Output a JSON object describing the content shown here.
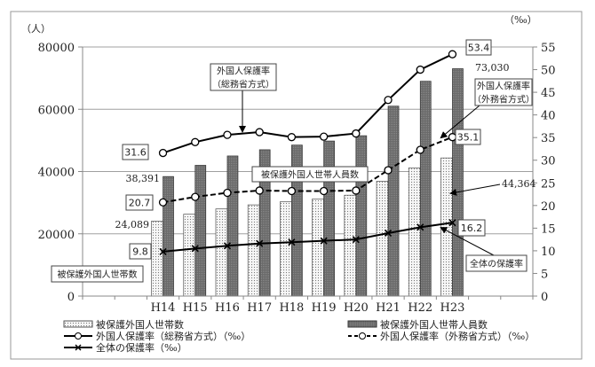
{
  "chart_data": {
    "type": "bar",
    "categories": [
      "H14",
      "H15",
      "H16",
      "H17",
      "H18",
      "H19",
      "H20",
      "H21",
      "H22",
      "H23"
    ],
    "left_axis": {
      "unit": "（人）",
      "ylim": [
        0,
        80000
      ],
      "ticks": [
        "0",
        "20000",
        "40000",
        "60000",
        "80000"
      ]
    },
    "right_axis": {
      "unit": "（‰）",
      "ylim": [
        0,
        55
      ],
      "ticks": [
        "0",
        "5",
        "10",
        "15",
        "20",
        "25",
        "30",
        "35",
        "40",
        "45",
        "50",
        "55"
      ]
    },
    "series": [
      {
        "name": "被保護外国人世帯数",
        "type": "bar",
        "axis": "left",
        "values": [
          24089,
          26300,
          28000,
          29300,
          30300,
          31200,
          32400,
          36900,
          41200,
          44364
        ]
      },
      {
        "name": "被保護外国人世帯人員数",
        "type": "bar",
        "axis": "left",
        "values": [
          38391,
          42000,
          45000,
          47000,
          48500,
          49800,
          51500,
          61000,
          69000,
          73030
        ]
      },
      {
        "name": "外国人保護率（総務省方式）（‰）",
        "type": "line",
        "axis": "right",
        "values": [
          31.6,
          34.0,
          35.6,
          36.2,
          35.1,
          35.2,
          35.9,
          43.3,
          50.0,
          53.4
        ]
      },
      {
        "name": "外国人保護率（外務省方式）（‰）",
        "type": "line",
        "axis": "right",
        "values": [
          20.7,
          21.9,
          22.8,
          23.3,
          23.2,
          23.2,
          23.3,
          27.8,
          32.3,
          35.1
        ]
      },
      {
        "name": "全体の保護率（‰）",
        "type": "line",
        "axis": "right",
        "values": [
          9.8,
          10.5,
          11.1,
          11.6,
          11.9,
          12.2,
          12.5,
          13.9,
          15.2,
          16.2
        ]
      }
    ],
    "data_labels": {
      "households_first": "24,089",
      "households_last": "44,364",
      "persons_first": "38,391",
      "persons_last": "73,030",
      "somusho_first": "31.6",
      "somusho_last": "53.4",
      "gaimusho_first": "20.7",
      "gaimusho_last": "35.1",
      "overall_first": "9.8",
      "overall_last": "16.2"
    },
    "annotations": {
      "somusho": [
        "外国人保護率",
        "（総務省方式）"
      ],
      "gaimusho": [
        "外国人保護率",
        "（外務省方式）"
      ],
      "persons": "被保護外国人世帯人員数",
      "households": "被保護外国人世帯数",
      "overall": "全体の保護率"
    },
    "legend": {
      "placement": "bottom",
      "items": [
        "被保護外国人世帯数",
        "被保護外国人世帯人員数",
        "外国人保護率（総務省方式）（‰）",
        "外国人保護率（外務省方式）（‰）",
        "全体の保護率（‰）"
      ]
    },
    "colors": {
      "household_bar": "#f4f4f4",
      "person_bar": "#6e6e6e",
      "line": "#000000",
      "grid": "#a0a0a0"
    }
  }
}
